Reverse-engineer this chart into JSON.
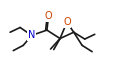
{
  "bg_color": "#ffffff",
  "line_color": "#1a1a1a",
  "atom_colors": {
    "O": "#cc4400",
    "N": "#0000cc",
    "C": "#1a1a1a"
  },
  "line_width": 1.2,
  "font_size": 7.0,
  "figsize": [
    1.18,
    0.76
  ],
  "dpi": 100,
  "xlim": [
    0,
    11
  ],
  "ylim": [
    0,
    7.1
  ]
}
